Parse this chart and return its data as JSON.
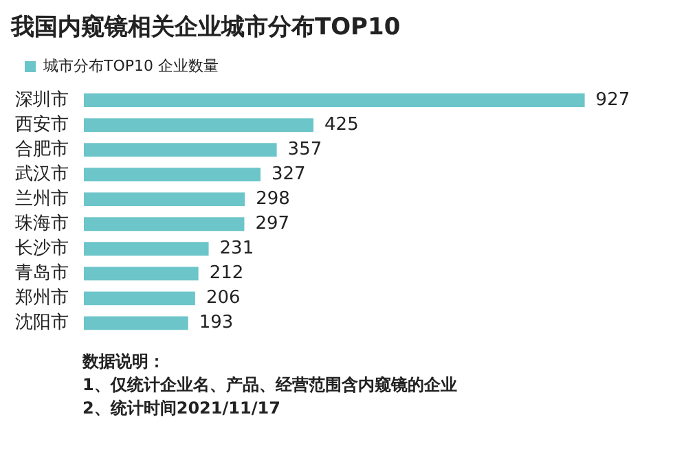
{
  "chart_data": {
    "type": "bar",
    "orientation": "horizontal",
    "title": "我国内窥镜相关企业城市分布TOP10",
    "categories": [
      "深圳市",
      "西安市",
      "合肥市",
      "武汉市",
      "兰州市",
      "珠海市",
      "长沙市",
      "青岛市",
      "郑州市",
      "沈阳市"
    ],
    "series": [
      {
        "name": "城市分布TOP10 企业数量",
        "color": "#6cc5c9",
        "values": [
          927,
          425,
          357,
          327,
          298,
          297,
          231,
          212,
          206,
          193
        ]
      }
    ],
    "data_labels": true,
    "legend": "top left",
    "tick_labels": "y",
    "annotations": [
      "数据说明：",
      "1、仅统计企业名、产品、经营范围含内窥镜的企业",
      "2、统计时间2021/11/17"
    ]
  }
}
